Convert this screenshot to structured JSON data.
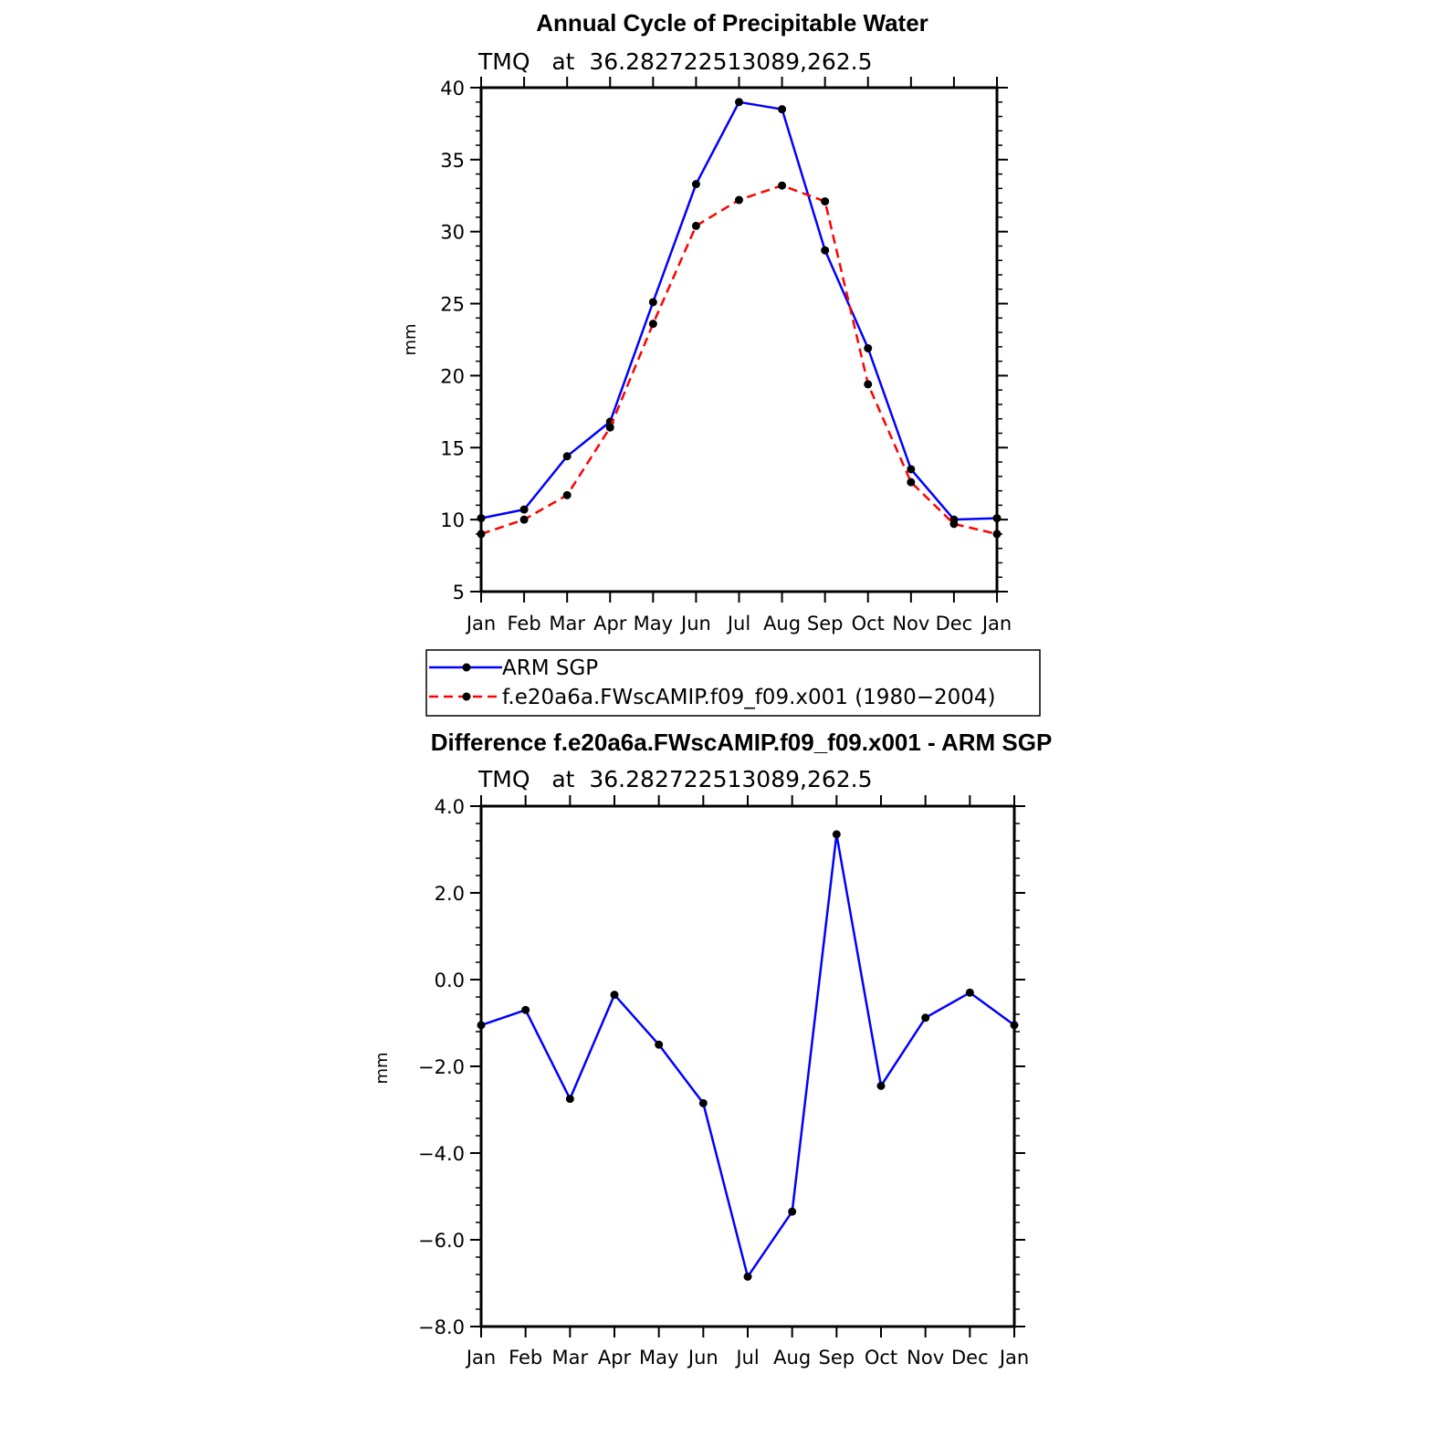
{
  "chart_data": [
    {
      "type": "line",
      "title": "Annual Cycle of Precipitable Water",
      "subtitle": "TMQ   at  36.282722513089,262.5",
      "xlabel": "",
      "ylabel": "mm",
      "ylim": [
        5,
        40
      ],
      "yticks": [
        5,
        10,
        15,
        20,
        25,
        30,
        35,
        40
      ],
      "ytick_labels": [
        "5",
        "10",
        "15",
        "20",
        "25",
        "30",
        "35",
        "40"
      ],
      "categories": [
        "Jan",
        "Feb",
        "Mar",
        "Apr",
        "May",
        "Jun",
        "Jul",
        "Aug",
        "Sep",
        "Oct",
        "Nov",
        "Dec",
        "Jan"
      ],
      "series": [
        {
          "name": "ARM SGP",
          "color": "#0000ff",
          "dash": "solid",
          "values": [
            10.1,
            10.7,
            14.4,
            16.8,
            25.1,
            33.3,
            39.0,
            38.5,
            28.7,
            21.9,
            13.5,
            10.0,
            10.1
          ]
        },
        {
          "name": "f.e20a6a.FWscAMIP.f09_f09.x001 (1980−2004)",
          "color": "#ff0000",
          "dash": "dashed",
          "values": [
            9.0,
            10.0,
            11.7,
            16.4,
            23.6,
            30.4,
            32.2,
            33.2,
            32.1,
            19.4,
            12.6,
            9.7,
            9.0
          ]
        }
      ],
      "legend": "below"
    },
    {
      "type": "line",
      "title": "Difference f.e20a6a.FWscAMIP.f09_f09.x001 - ARM SGP",
      "subtitle": "TMQ   at  36.282722513089,262.5",
      "xlabel": "",
      "ylabel": "mm",
      "ylim": [
        -8,
        4
      ],
      "yticks": [
        -8,
        -6,
        -4,
        -2,
        0,
        2,
        4
      ],
      "ytick_labels": [
        "−8.0",
        "−6.0",
        "−4.0",
        "−2.0",
        "0.0",
        "2.0",
        "4.0"
      ],
      "categories": [
        "Jan",
        "Feb",
        "Mar",
        "Apr",
        "May",
        "Jun",
        "Jul",
        "Aug",
        "Sep",
        "Oct",
        "Nov",
        "Dec",
        "Jan"
      ],
      "series": [
        {
          "name": "Difference",
          "color": "#0000ff",
          "dash": "solid",
          "values": [
            -1.05,
            -0.7,
            -2.75,
            -0.35,
            -1.5,
            -2.85,
            -6.85,
            -5.35,
            3.35,
            -2.45,
            -0.88,
            -0.3,
            -1.05
          ]
        }
      ]
    }
  ]
}
